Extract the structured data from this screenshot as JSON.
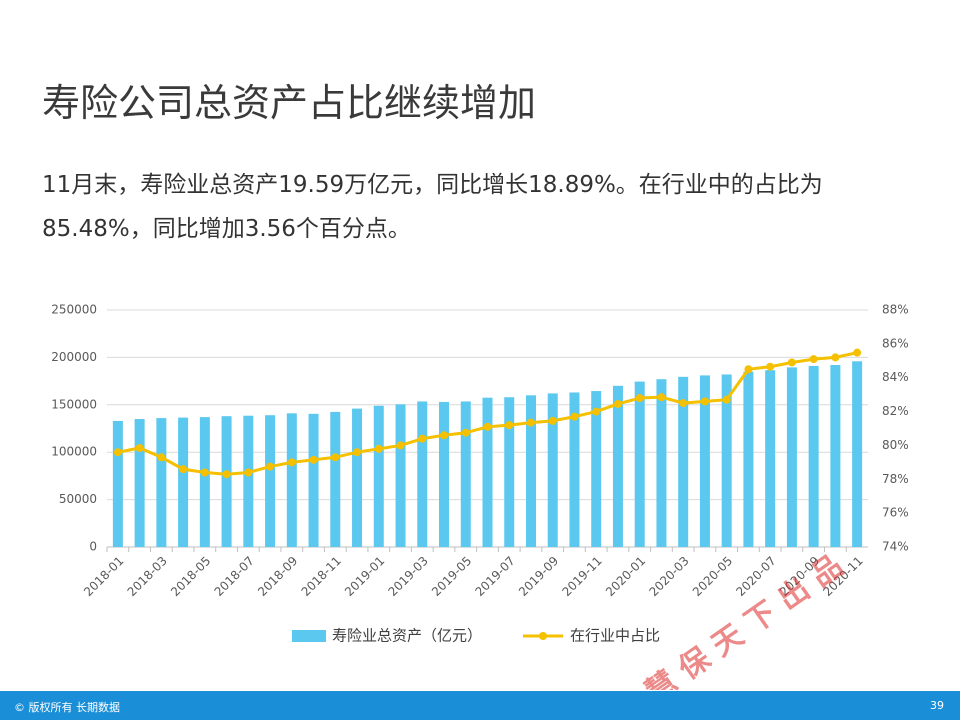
{
  "title": "寿险公司总资产占比继续增加",
  "body": "11月末，寿险业总资产19.59万亿元，同比增长18.89%。在行业中的占比为85.48%，同比增加3.56个百分点。",
  "watermark": "慧 保 天 下 出 品",
  "footer": {
    "copyright": "© 版权所有 长期数据",
    "page": "39"
  },
  "chart_data": {
    "type": "bar-line",
    "categories": [
      "2018-01",
      null,
      "2018-03",
      null,
      "2018-05",
      null,
      "2018-07",
      null,
      "2018-09",
      null,
      "2018-11",
      null,
      "2019-01",
      null,
      "2019-03",
      null,
      "2019-05",
      null,
      "2019-07",
      null,
      "2019-09",
      null,
      "2019-11",
      null,
      "2020-01",
      null,
      "2020-03",
      null,
      "2020-05",
      null,
      "2020-07",
      null,
      "2020-09",
      null,
      "2020-11"
    ],
    "series": [
      {
        "name": "寿险业总资产（亿元）",
        "color": "#5bc8ef",
        "values": [
          133000,
          135000,
          136000,
          136500,
          137000,
          138000,
          138500,
          139000,
          141000,
          140500,
          142500,
          146000,
          149000,
          150500,
          153500,
          153000,
          153500,
          157500,
          158000,
          160000,
          162000,
          163000,
          164500,
          170000,
          174500,
          177000,
          179500,
          181000,
          182000,
          185000,
          186500,
          189500,
          191000,
          192000,
          195900
        ]
      },
      {
        "name": "在行业中占比",
        "color": "#f5c000",
        "axis": "y2",
        "values": [
          79.6,
          79.85,
          79.3,
          78.6,
          78.4,
          78.3,
          78.4,
          78.75,
          79.0,
          79.15,
          79.3,
          79.6,
          79.8,
          80.0,
          80.4,
          80.6,
          80.75,
          81.1,
          81.2,
          81.35,
          81.45,
          81.7,
          82.0,
          82.45,
          82.8,
          82.85,
          82.5,
          82.6,
          82.7,
          84.5,
          84.65,
          84.9,
          85.1,
          85.2,
          85.48
        ]
      }
    ],
    "ylim": [
      0,
      250000
    ],
    "yticks": [
      0,
      50000,
      100000,
      150000,
      200000,
      250000
    ],
    "y2lim": [
      74,
      88
    ],
    "y2ticks": [
      {
        "value": 74,
        "label": "74%"
      },
      {
        "value": 76,
        "label": "76%"
      },
      {
        "value": 78,
        "label": "78%"
      },
      {
        "value": 80,
        "label": "80%"
      },
      {
        "value": 82,
        "label": "82%"
      },
      {
        "value": 84,
        "label": "84%"
      },
      {
        "value": 86,
        "label": "86%"
      },
      {
        "value": 88,
        "label": "88%"
      }
    ],
    "grid": true,
    "legend": "bottom"
  }
}
